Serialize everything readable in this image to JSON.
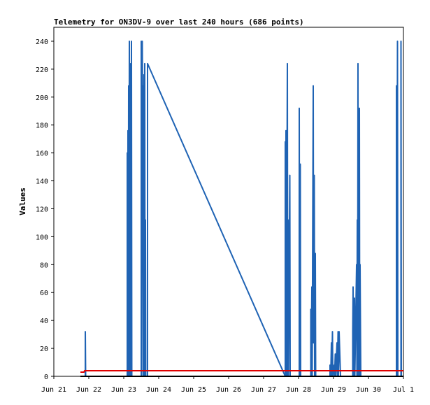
{
  "chart_data": {
    "type": "line",
    "title": "Telemetry for ON3DV-9 over last 240 hours (686 points)",
    "xlabel": "",
    "ylabel": "Values",
    "x_ticks": [
      "Jun 21",
      "Jun 22",
      "Jun 23",
      "Jun 24",
      "Jun 25",
      "Jun 26",
      "Jun 27",
      "Jun 28",
      "Jun 29",
      "Jun 30",
      "Jul 1"
    ],
    "xlim_days": [
      0,
      10
    ],
    "ylim": [
      0,
      250
    ],
    "y_ticks": [
      0,
      20,
      40,
      60,
      80,
      100,
      120,
      140,
      160,
      180,
      200,
      220,
      240
    ],
    "grid": false,
    "legend": "none",
    "colors": {
      "series_blue": "#1f63b4",
      "series_red": "#e00000",
      "series_black": "#000000"
    },
    "series": [
      {
        "color": "#1f63b4",
        "points": [
          [
            0.9,
            0
          ],
          [
            0.9,
            32
          ],
          [
            0.91,
            0
          ],
          [
            2.1,
            0
          ],
          [
            2.1,
            160
          ],
          [
            2.11,
            0
          ],
          [
            2.12,
            176
          ],
          [
            2.13,
            0
          ],
          [
            2.14,
            208
          ],
          [
            2.15,
            0
          ],
          [
            2.16,
            240
          ],
          [
            2.17,
            0
          ],
          [
            2.2,
            224
          ],
          [
            2.21,
            0
          ],
          [
            2.22,
            240
          ],
          [
            2.23,
            0
          ],
          [
            2.5,
            0
          ],
          [
            2.5,
            240
          ],
          [
            2.51,
            0
          ],
          [
            2.53,
            240
          ],
          [
            2.54,
            184
          ],
          [
            2.55,
            208
          ],
          [
            2.56,
            0
          ],
          [
            2.58,
            216
          ],
          [
            2.59,
            0
          ],
          [
            2.6,
            224
          ],
          [
            2.61,
            0
          ],
          [
            2.62,
            112
          ],
          [
            2.63,
            0
          ],
          [
            2.68,
            0
          ],
          [
            2.68,
            224
          ],
          [
            6.62,
            0
          ],
          [
            6.62,
            168
          ],
          [
            6.63,
            0
          ],
          [
            6.64,
            176
          ],
          [
            6.65,
            0
          ],
          [
            6.68,
            224
          ],
          [
            6.69,
            0
          ],
          [
            6.7,
            112
          ],
          [
            6.71,
            0
          ],
          [
            6.75,
            144
          ],
          [
            6.76,
            0
          ],
          [
            7.02,
            0
          ],
          [
            7.02,
            192
          ],
          [
            7.03,
            0
          ],
          [
            7.05,
            152
          ],
          [
            7.06,
            0
          ],
          [
            7.35,
            0
          ],
          [
            7.35,
            48
          ],
          [
            7.36,
            0
          ],
          [
            7.38,
            64
          ],
          [
            7.39,
            0
          ],
          [
            7.42,
            208
          ],
          [
            7.43,
            24
          ],
          [
            7.45,
            144
          ],
          [
            7.46,
            0
          ],
          [
            7.48,
            88
          ],
          [
            7.49,
            0
          ],
          [
            7.9,
            0
          ],
          [
            7.9,
            8
          ],
          [
            7.92,
            0
          ],
          [
            7.94,
            24
          ],
          [
            7.95,
            0
          ],
          [
            7.97,
            32
          ],
          [
            7.98,
            0
          ],
          [
            8.02,
            8
          ],
          [
            8.03,
            0
          ],
          [
            8.05,
            16
          ],
          [
            8.06,
            0
          ],
          [
            8.1,
            24
          ],
          [
            8.11,
            0
          ],
          [
            8.13,
            32
          ],
          [
            8.14,
            0
          ],
          [
            8.16,
            32
          ],
          [
            8.17,
            24
          ],
          [
            8.2,
            0
          ],
          [
            8.55,
            0
          ],
          [
            8.55,
            32
          ],
          [
            8.56,
            64
          ],
          [
            8.58,
            0
          ],
          [
            8.6,
            56
          ],
          [
            8.61,
            0
          ],
          [
            8.66,
            80
          ],
          [
            8.67,
            0
          ],
          [
            8.68,
            112
          ],
          [
            8.69,
            0
          ],
          [
            8.7,
            224
          ],
          [
            8.71,
            0
          ],
          [
            8.73,
            80
          ],
          [
            8.74,
            192
          ],
          [
            8.75,
            0
          ],
          [
            8.76,
            80
          ],
          [
            8.78,
            0
          ],
          [
            9.8,
            0
          ],
          [
            9.8,
            208
          ],
          [
            9.81,
            0
          ],
          [
            9.83,
            240
          ],
          [
            9.84,
            0
          ],
          [
            9.93,
            0
          ],
          [
            9.93,
            240
          ],
          [
            9.94,
            0
          ]
        ]
      },
      {
        "color": "#e00000",
        "points": [
          [
            0.76,
            3
          ],
          [
            0.86,
            3
          ],
          [
            0.88,
            4
          ],
          [
            10,
            4
          ]
        ]
      },
      {
        "color": "#000000",
        "points": [
          [
            0.76,
            0
          ],
          [
            10,
            0
          ]
        ]
      }
    ]
  }
}
